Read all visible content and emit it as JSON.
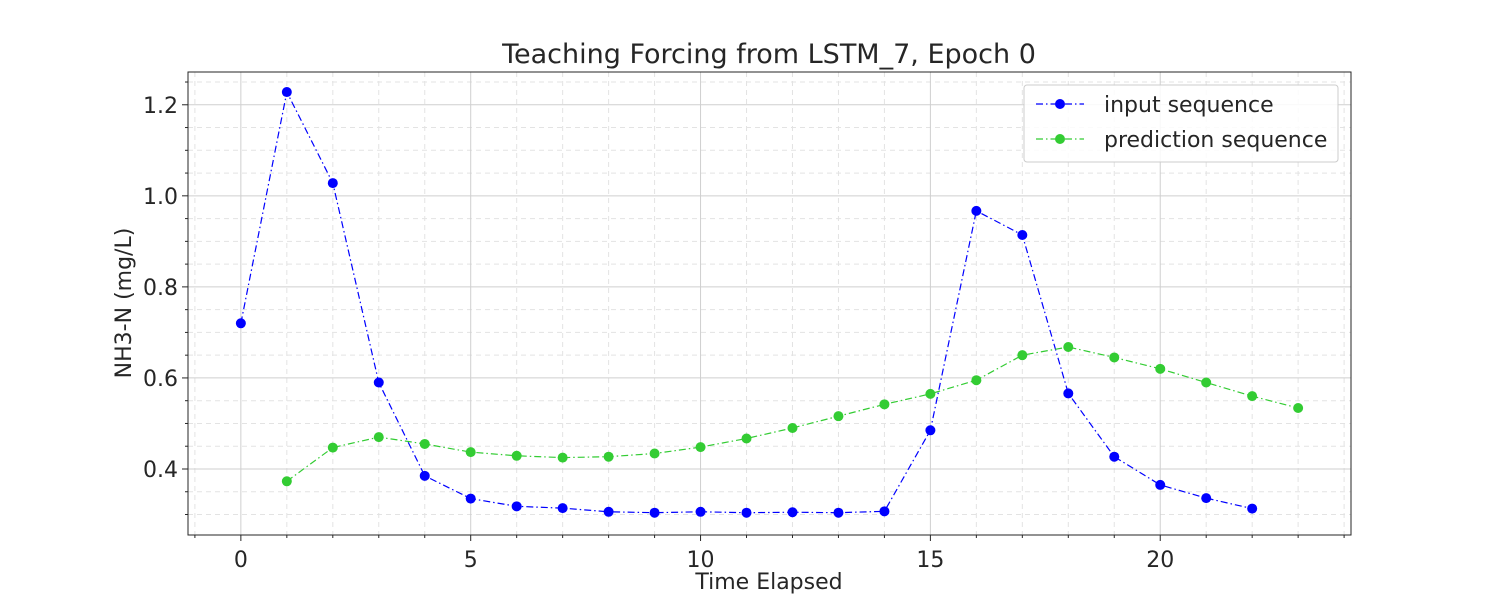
{
  "chart_data": {
    "type": "line",
    "title": "Teaching Forcing from LSTM_7, Epoch 0",
    "xlabel": "Time Elapsed",
    "ylabel": "NH3-N (mg/L)",
    "xlim": [
      -1.15,
      24.15
    ],
    "ylim": [
      0.255,
      1.272
    ],
    "xticks": [
      0,
      5,
      10,
      15,
      20
    ],
    "xtick_labels": [
      "0",
      "5",
      "10",
      "15",
      "20"
    ],
    "yticks": [
      0.4,
      0.6,
      0.8,
      1.0,
      1.2
    ],
    "ytick_labels": [
      "0.4",
      "0.6",
      "0.8",
      "1.0",
      "1.2"
    ],
    "grid": true,
    "minor_grid": true,
    "legend_position": "upper right",
    "series": [
      {
        "name": "input sequence",
        "color": "#0000ff",
        "line_style": "dashdot",
        "marker": "circle",
        "x": [
          0,
          1,
          2,
          3,
          4,
          5,
          6,
          7,
          8,
          9,
          10,
          11,
          12,
          13,
          14,
          15,
          16,
          17,
          18,
          19,
          20,
          21,
          22
        ],
        "values": [
          0.72,
          1.228,
          1.028,
          0.59,
          0.385,
          0.335,
          0.318,
          0.314,
          0.306,
          0.304,
          0.306,
          0.304,
          0.305,
          0.304,
          0.307,
          0.485,
          0.967,
          0.914,
          0.566,
          0.427,
          0.365,
          0.336,
          0.313
        ]
      },
      {
        "name": "prediction sequence",
        "color": "#33cc33",
        "line_style": "dashdot",
        "marker": "circle",
        "x": [
          1,
          2,
          3,
          4,
          5,
          6,
          7,
          8,
          9,
          10,
          11,
          12,
          13,
          14,
          15,
          16,
          17,
          18,
          19,
          20,
          21,
          22,
          23
        ],
        "values": [
          0.373,
          0.447,
          0.47,
          0.455,
          0.437,
          0.429,
          0.425,
          0.427,
          0.434,
          0.448,
          0.467,
          0.49,
          0.516,
          0.542,
          0.565,
          0.595,
          0.65,
          0.668,
          0.645,
          0.62,
          0.59,
          0.56,
          0.534
        ]
      }
    ]
  }
}
